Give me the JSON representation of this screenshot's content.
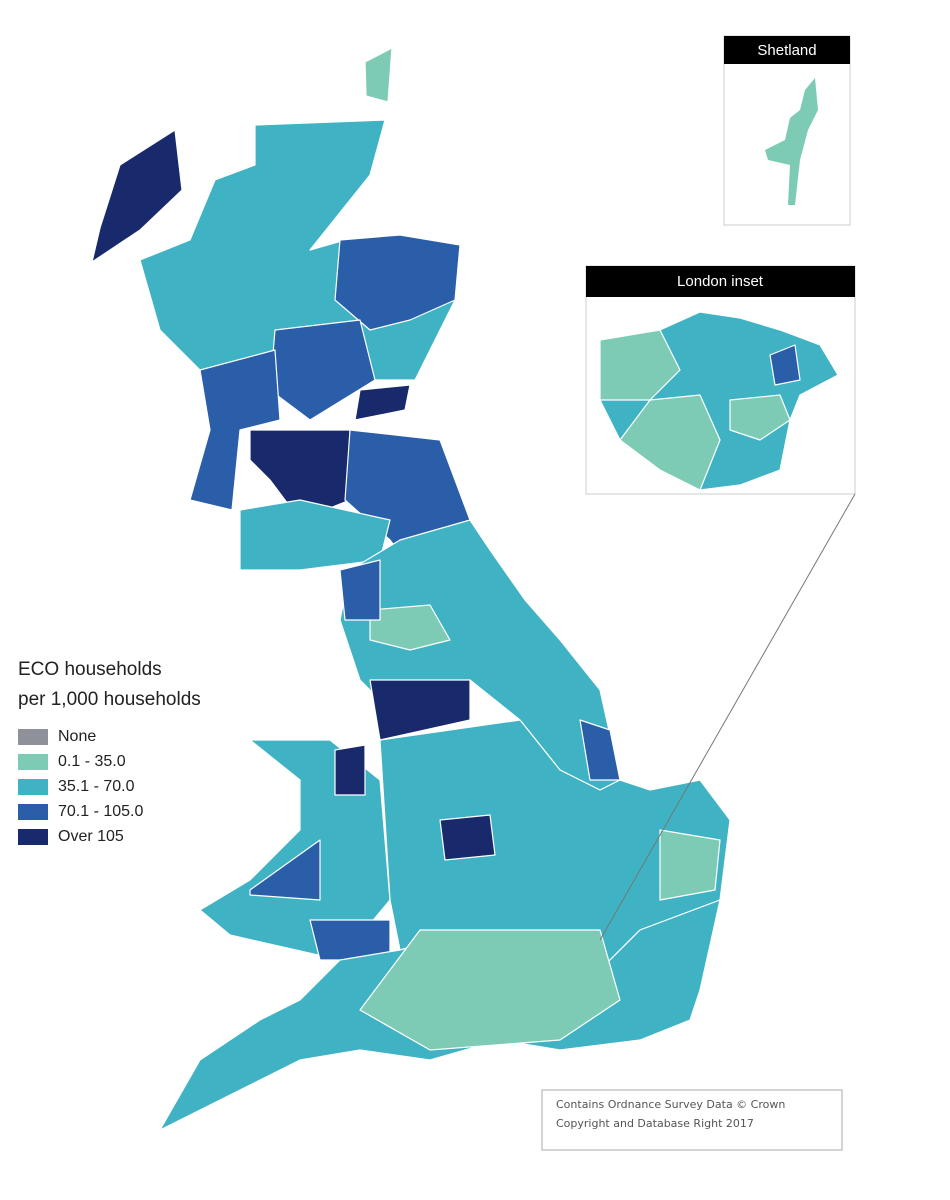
{
  "legend": {
    "title": [
      "ECO households",
      "per 1,000 households"
    ],
    "items": [
      {
        "label": "None",
        "color": "#8e9199"
      },
      {
        "label": "0.1 - 35.0",
        "color": "#7ecbb5"
      },
      {
        "label": "35.1 - 70.0",
        "color": "#3fb2c4"
      },
      {
        "label": "70.1 - 105.0",
        "color": "#2a5ea8"
      },
      {
        "label": "Over 105",
        "color": "#182a6b"
      }
    ]
  },
  "insets": {
    "shetland": {
      "title": "Shetland"
    },
    "london": {
      "title": "London inset"
    }
  },
  "copyright": [
    "Contains Ordnance Survey Data © Crown",
    "Copyright and Database Right 2017"
  ]
}
